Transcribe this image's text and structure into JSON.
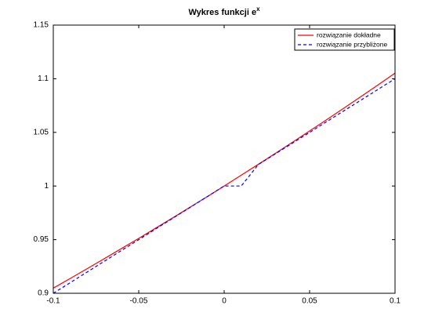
{
  "chart_data": {
    "type": "line",
    "title": "Wykres funkcji e",
    "title_superscript": "x",
    "x": [
      -0.1,
      -0.09,
      -0.08,
      -0.07,
      -0.06,
      -0.05,
      -0.04,
      -0.03,
      -0.02,
      -0.01,
      0,
      0.01,
      0.02,
      0.03,
      0.04,
      0.05,
      0.06,
      0.07,
      0.08,
      0.09,
      0.1
    ],
    "series": [
      {
        "name": "rozwiązanie dokładne",
        "color": "#ff0000",
        "dash": false,
        "values": [
          0.9048,
          0.9139,
          0.9231,
          0.9324,
          0.9418,
          0.9512,
          0.9608,
          0.9704,
          0.9802,
          0.99,
          1,
          1.0101,
          1.0202,
          1.0305,
          1.0408,
          1.0513,
          1.0618,
          1.0725,
          1.0833,
          1.0942,
          1.1052
        ]
      },
      {
        "name": "rozwiązanie przybliżone",
        "color": "#0000ff",
        "dash": true,
        "values": [
          0.9,
          0.91,
          0.92,
          0.93,
          0.94,
          0.95,
          0.96,
          0.97,
          0.98,
          0.99,
          1,
          1,
          1.02,
          1.03,
          1.04,
          1.05,
          1.06,
          1.07,
          1.08,
          1.09,
          1.1
        ]
      }
    ],
    "xlim": [
      -0.1,
      0.1
    ],
    "xticks": [
      -0.1,
      -0.05,
      0,
      0.05,
      0.1
    ],
    "ylim": [
      0.9,
      1.15
    ],
    "yticks": [
      0.9,
      0.95,
      1,
      1.05,
      1.1,
      1.15
    ],
    "grid": false,
    "legend": "top-right"
  }
}
